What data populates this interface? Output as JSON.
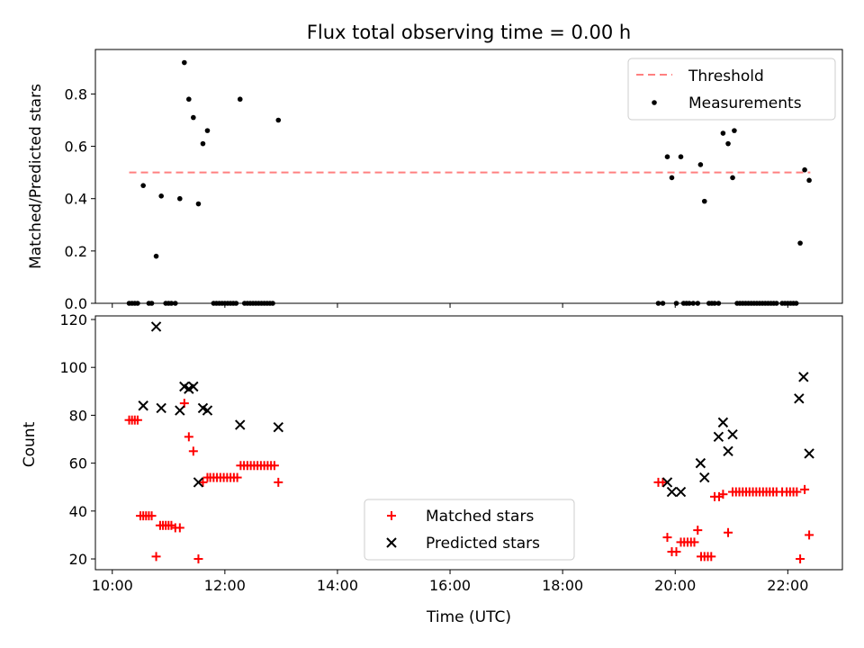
{
  "chart_data": {
    "type": "scatter",
    "title": "Flux total observing time = 0.00 h",
    "xlabel": "Time (UTC)",
    "xlim": [
      9.7,
      22.97
    ],
    "xticks": [
      {
        "value": 10,
        "label": "10:00"
      },
      {
        "value": 12,
        "label": "12:00"
      },
      {
        "value": 14,
        "label": "14:00"
      },
      {
        "value": 16,
        "label": "16:00"
      },
      {
        "value": 18,
        "label": "18:00"
      },
      {
        "value": 20,
        "label": "20:00"
      },
      {
        "value": 22,
        "label": "22:00"
      }
    ],
    "panels": [
      {
        "ylabel": "Matched/Predicted stars",
        "ylim": [
          0,
          0.97
        ],
        "yticks": [
          {
            "value": 0,
            "label": "0.0"
          },
          {
            "value": 0.2,
            "label": "0.2"
          },
          {
            "value": 0.4,
            "label": "0.4"
          },
          {
            "value": 0.6,
            "label": "0.6"
          },
          {
            "value": 0.8,
            "label": "0.8"
          }
        ],
        "legend_position": "upper-right",
        "threshold": {
          "name": "Threshold",
          "value": 0.5,
          "x_range": [
            10.3,
            22.4
          ],
          "color": "#ff8080"
        },
        "series": [
          {
            "name": "Measurements",
            "marker": "dot",
            "color": "#000000",
            "x": [
              10.3,
              10.35,
              10.4,
              10.45,
              10.55,
              10.65,
              10.7,
              10.78,
              10.87,
              10.95,
              11.0,
              11.05,
              11.12,
              11.2,
              11.28,
              11.36,
              11.44,
              11.53,
              11.61,
              11.69,
              11.8,
              11.85,
              11.9,
              11.95,
              12.0,
              12.05,
              12.1,
              12.15,
              12.2,
              12.27,
              12.35,
              12.4,
              12.45,
              12.5,
              12.55,
              12.6,
              12.65,
              12.7,
              12.75,
              12.8,
              12.85,
              12.95,
              19.7,
              19.78,
              19.86,
              19.94,
              20.02,
              20.1,
              20.15,
              20.2,
              20.25,
              20.32,
              20.4,
              20.45,
              20.52,
              20.6,
              20.65,
              20.7,
              20.77,
              20.85,
              20.94,
              21.02,
              21.05,
              21.1,
              21.15,
              21.2,
              21.25,
              21.3,
              21.35,
              21.4,
              21.45,
              21.5,
              21.55,
              21.6,
              21.65,
              21.7,
              21.75,
              21.8,
              21.9,
              21.95,
              22.0,
              22.05,
              22.1,
              22.15,
              22.22,
              22.3,
              22.38
            ],
            "y": [
              0.0,
              0.0,
              0.0,
              0.0,
              0.45,
              0.0,
              0.0,
              0.18,
              0.41,
              0.0,
              0.0,
              0.0,
              0.0,
              0.4,
              0.92,
              0.78,
              0.71,
              0.38,
              0.61,
              0.66,
              0.0,
              0.0,
              0.0,
              0.0,
              0.0,
              0.0,
              0.0,
              0.0,
              0.0,
              0.78,
              0.0,
              0.0,
              0.0,
              0.0,
              0.0,
              0.0,
              0.0,
              0.0,
              0.0,
              0.0,
              0.0,
              0.7,
              0.0,
              0.0,
              0.56,
              0.48,
              0.0,
              0.56,
              0.0,
              0.0,
              0.0,
              0.0,
              0.0,
              0.53,
              0.39,
              0.0,
              0.0,
              0.0,
              0.0,
              0.65,
              0.61,
              0.48,
              0.66,
              0.0,
              0.0,
              0.0,
              0.0,
              0.0,
              0.0,
              0.0,
              0.0,
              0.0,
              0.0,
              0.0,
              0.0,
              0.0,
              0.0,
              0.0,
              0.0,
              0.0,
              0.0,
              0.0,
              0.0,
              0.0,
              0.23,
              0.51,
              0.47
            ]
          }
        ]
      },
      {
        "ylabel": "Count",
        "ylim": [
          15.5,
          121.5
        ],
        "yticks": [
          {
            "value": 20,
            "label": "20"
          },
          {
            "value": 40,
            "label": "40"
          },
          {
            "value": 60,
            "label": "60"
          },
          {
            "value": 80,
            "label": "80"
          },
          {
            "value": 100,
            "label": "100"
          },
          {
            "value": 120,
            "label": "120"
          }
        ],
        "legend_position": "lower-center",
        "series": [
          {
            "name": "Matched stars",
            "marker": "plus",
            "color": "#ff0000",
            "x": [
              10.3,
              10.35,
              10.4,
              10.45,
              10.5,
              10.55,
              10.6,
              10.65,
              10.7,
              10.78,
              10.85,
              10.9,
              10.95,
              11.0,
              11.05,
              11.12,
              11.2,
              11.28,
              11.36,
              11.44,
              11.53,
              11.61,
              11.69,
              11.74,
              11.8,
              11.86,
              11.92,
              11.98,
              12.04,
              12.1,
              12.16,
              12.22,
              12.28,
              12.34,
              12.4,
              12.46,
              12.52,
              12.58,
              12.64,
              12.7,
              12.76,
              12.82,
              12.88,
              12.95,
              19.7,
              19.78,
              19.86,
              19.94,
              20.02,
              20.1,
              20.16,
              20.22,
              20.28,
              20.34,
              20.4,
              20.46,
              20.52,
              20.58,
              20.64,
              20.7,
              20.78,
              20.85,
              20.94,
              21.02,
              21.08,
              21.14,
              21.2,
              21.26,
              21.32,
              21.38,
              21.44,
              21.5,
              21.56,
              21.62,
              21.68,
              21.74,
              21.8,
              21.9,
              21.98,
              22.04,
              22.1,
              22.16,
              22.22,
              22.3,
              22.38
            ],
            "y": [
              78,
              78,
              78,
              78,
              38,
              38,
              38,
              38,
              38,
              21,
              34,
              34,
              34,
              34,
              34,
              33,
              33,
              85,
              71,
              65,
              20,
              52,
              54,
              54,
              54,
              54,
              54,
              54,
              54,
              54,
              54,
              54,
              59,
              59,
              59,
              59,
              59,
              59,
              59,
              59,
              59,
              59,
              59,
              52,
              52,
              52,
              29,
              23,
              23,
              27,
              27,
              27,
              27,
              27,
              32,
              21,
              21,
              21,
              21,
              46,
              46,
              47,
              31,
              48,
              48,
              48,
              48,
              48,
              48,
              48,
              48,
              48,
              48,
              48,
              48,
              48,
              48,
              48,
              48,
              48,
              48,
              48,
              20,
              49,
              30
            ]
          },
          {
            "name": "Predicted stars",
            "marker": "x",
            "color": "#000000",
            "x": [
              10.55,
              10.78,
              10.87,
              11.2,
              11.28,
              11.36,
              11.44,
              11.53,
              11.61,
              11.69,
              12.27,
              12.95,
              19.86,
              19.94,
              20.1,
              20.45,
              20.52,
              20.77,
              20.85,
              20.94,
              21.02,
              22.2,
              22.28,
              22.38
            ],
            "y": [
              84,
              117,
              83,
              82,
              92,
              91,
              92,
              52,
              83,
              82,
              76,
              75,
              52,
              48,
              48,
              60,
              54,
              71,
              77,
              65,
              72,
              87,
              96,
              64
            ]
          }
        ]
      }
    ]
  }
}
